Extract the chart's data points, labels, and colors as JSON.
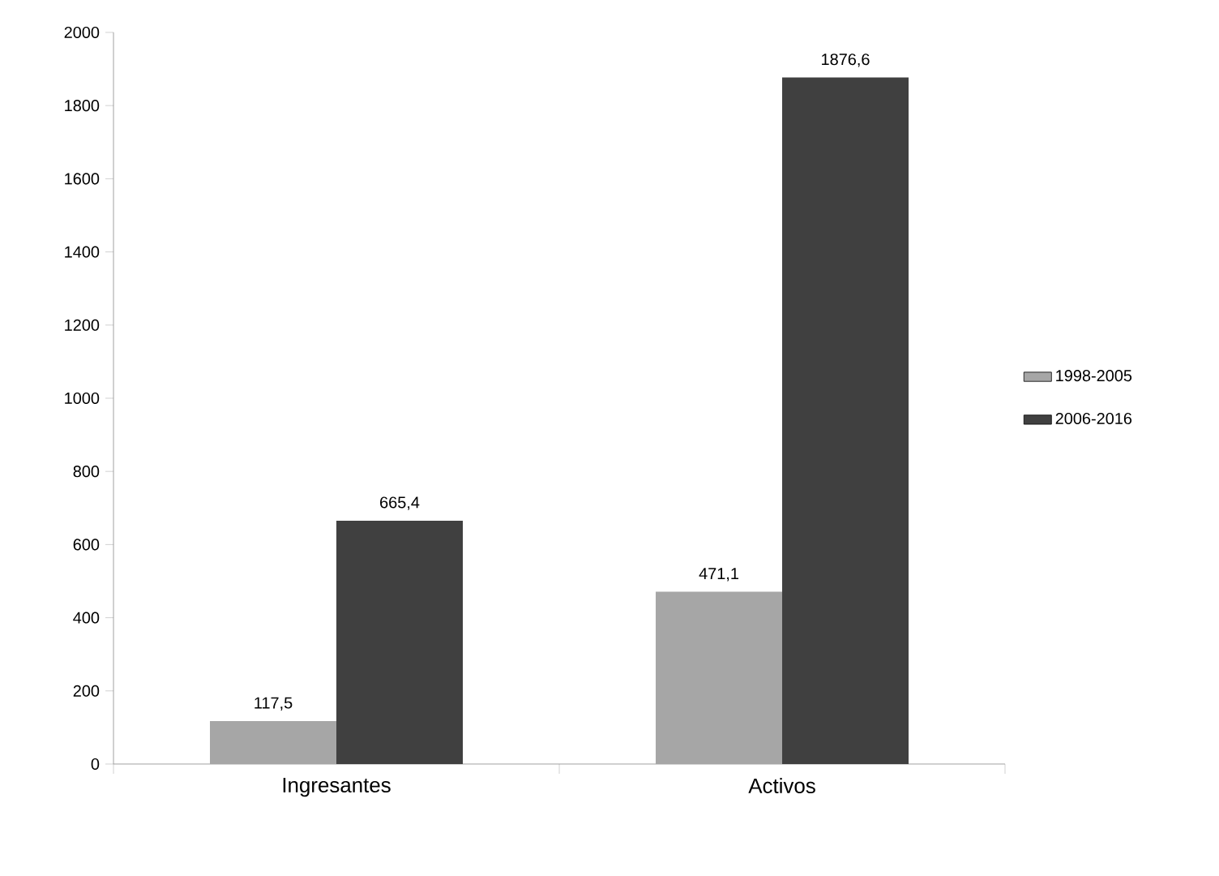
{
  "chart_data": {
    "type": "bar",
    "categories": [
      "Ingresantes",
      "Activos"
    ],
    "series": [
      {
        "name": "1998-2005",
        "color": "#a6a6a6",
        "values": [
          117.5,
          471.1
        ],
        "value_labels": [
          "117,5",
          "471,1"
        ]
      },
      {
        "name": "2006-2016",
        "color": "#404040",
        "values": [
          665.4,
          1876.6
        ],
        "value_labels": [
          "665,4",
          "1876,6"
        ]
      }
    ],
    "ylim": [
      0,
      2000
    ],
    "yticks": [
      0,
      200,
      400,
      600,
      800,
      1000,
      1200,
      1400,
      1600,
      1800,
      2000
    ],
    "grid": false,
    "legend": "right"
  }
}
